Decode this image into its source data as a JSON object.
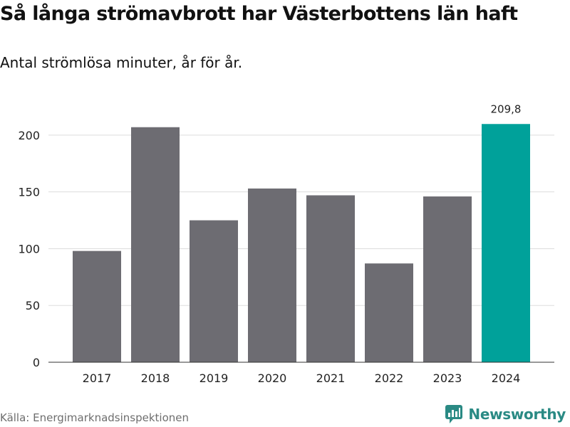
{
  "header": {
    "title": "Så långa strömavbrott har Västerbottens län haft",
    "subtitle": "Antal strömlösa minuter, år för år."
  },
  "chart_data": {
    "type": "bar",
    "title": "Så långa strömavbrott har Västerbottens län haft",
    "subtitle": "Antal strömlösa minuter, år för år.",
    "xlabel": "",
    "ylabel": "",
    "categories": [
      "2017",
      "2018",
      "2019",
      "2020",
      "2021",
      "2022",
      "2023",
      "2024"
    ],
    "values": [
      98,
      207,
      125,
      153,
      147,
      87,
      146,
      209.8
    ],
    "ylim": [
      0,
      225
    ],
    "yticks": [
      0,
      50,
      100,
      150,
      200
    ],
    "grid": true,
    "bar_color": "#6d6c72",
    "highlight_color": "#00a19a",
    "highlight_index": 7,
    "annotations": [
      {
        "category": "2024",
        "text": "209,8"
      }
    ]
  },
  "footer": {
    "source": "Källa: Energimarknadsinspektionen",
    "brand": "Newsworthy"
  },
  "colors": {
    "brand": "#2a8a84"
  }
}
